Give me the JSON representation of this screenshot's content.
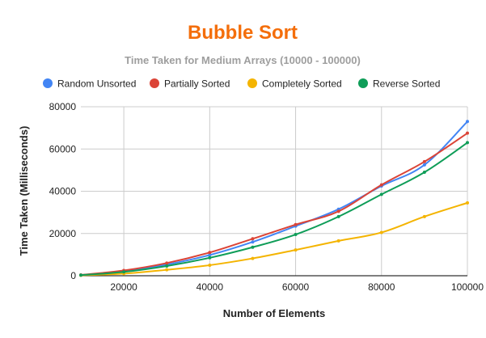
{
  "colors": {
    "title": "#f46e0b",
    "subtitle": "#9e9e9e",
    "grid": "#cccccc",
    "axis": "#333333"
  },
  "chart_data": {
    "type": "line",
    "title": "Bubble Sort",
    "subtitle": "Time Taken for Medium Arrays (10000 - 100000)",
    "xlabel": "Number of Elements",
    "ylabel": "Time Taken (Milliseconds)",
    "xlim": [
      10000,
      100000
    ],
    "ylim": [
      0,
      80000
    ],
    "x_ticks": [
      20000,
      40000,
      60000,
      80000,
      100000
    ],
    "x_tick_labels": [
      "20000",
      "40000",
      "60000",
      "80000",
      "100000"
    ],
    "y_ticks": [
      0,
      20000,
      40000,
      60000,
      80000
    ],
    "y_tick_labels": [
      "0",
      "20000",
      "40000",
      "60000",
      "80000"
    ],
    "grid": true,
    "legend_position": "top",
    "x": [
      10000,
      20000,
      30000,
      40000,
      50000,
      60000,
      70000,
      80000,
      90000,
      100000
    ],
    "series": [
      {
        "name": "Random Unsorted",
        "color": "#4285f4",
        "values": [
          300,
          2200,
          5300,
          9800,
          16000,
          23500,
          31500,
          42500,
          52500,
          73000
        ]
      },
      {
        "name": "Partially Sorted",
        "color": "#db4437",
        "values": [
          400,
          2500,
          6000,
          11000,
          17500,
          24200,
          30500,
          43000,
          54000,
          67500
        ]
      },
      {
        "name": "Completely Sorted",
        "color": "#f4b400",
        "values": [
          200,
          1000,
          2800,
          5000,
          8200,
          12200,
          16500,
          20500,
          28000,
          34500
        ]
      },
      {
        "name": "Reverse Sorted",
        "color": "#0f9d58",
        "values": [
          300,
          1800,
          4600,
          8500,
          13500,
          19500,
          28000,
          38500,
          49000,
          63000
        ]
      }
    ]
  }
}
